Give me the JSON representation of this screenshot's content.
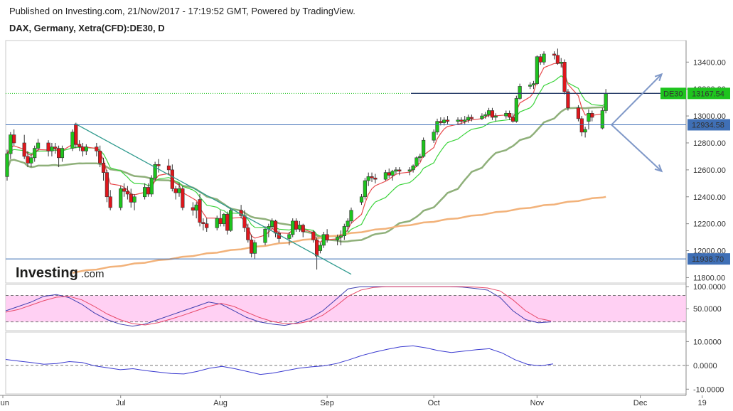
{
  "header": {
    "published": "Published on Investing.com, 21/Nov/2017 - 17:19:52 GMT, Powered by TradingView.",
    "instrument": "DAX, Germany, Xetra(CFD):DE30, D"
  },
  "logo": {
    "brand": "Investing",
    "suffix": ".com"
  },
  "colors": {
    "up": "#1ec41e",
    "down": "#e0161c",
    "ema_short": "#e8484b",
    "ema_mid": "#3bd33b",
    "sma_long": "#8fb07a",
    "sma_200": "#f2b27a",
    "trendline": "#2f9a8e",
    "support": "#3f6fb5",
    "arrow": "#7f98c8",
    "stoch_k": "#3f3fb0",
    "stoch_d": "#e84a6a",
    "stoch_band": "#ffc4f0",
    "indicator": "#3a3ad0"
  },
  "chart_data": [
    {
      "type": "candlestick",
      "title": "DAX, Germany, Xetra(CFD):DE30, D",
      "x_ticks": [
        "Jun",
        "Jul",
        "Aug",
        "Sep",
        "Oct",
        "Nov",
        "Dec",
        "19"
      ],
      "y_ticks": [
        11800,
        12000,
        12200,
        12400,
        12600,
        12800,
        13000,
        13200,
        13400
      ],
      "y_tick_labels": [
        "11800.00",
        "12000.00",
        "12200.00",
        "12400.00",
        "12600.00",
        "12800.00",
        "13000.00",
        "13200.00",
        "13400.00"
      ],
      "ylim": [
        11760,
        13560
      ],
      "start_date": "2017-06-01",
      "last_price": {
        "label": "DE30",
        "value": "13167.54",
        "y": 13167.54
      },
      "level_labels": [
        {
          "value": "12934.58",
          "y": 12934.58
        },
        {
          "value": "11938.70",
          "y": 11938.7
        }
      ],
      "support_lines": [
        12934.58,
        11938.7
      ],
      "trendline": {
        "from": {
          "date": "2017-06-20",
          "y": 12940
        },
        "to": {
          "date": "2017-09-08",
          "y": 11825
        }
      },
      "arrows": [
        {
          "from": {
            "date": "2017-11-21",
            "y": 12934.58
          },
          "to": {
            "date": "2017-12-01",
            "y": 13310
          }
        },
        {
          "from": {
            "date": "2017-11-21",
            "y": 12934.58
          },
          "to": {
            "date": "2017-12-01",
            "y": 12590
          }
        }
      ],
      "ohlc": [
        [
          "2017-05-31",
          12550,
          12750,
          12520,
          12720
        ],
        [
          "2017-06-01",
          12720,
          12880,
          12680,
          12860
        ],
        [
          "2017-06-02",
          12860,
          12900,
          12780,
          12800
        ],
        [
          "2017-06-05",
          12800,
          12860,
          12680,
          12700
        ],
        [
          "2017-06-06",
          12700,
          12740,
          12620,
          12650
        ],
        [
          "2017-06-07",
          12650,
          12720,
          12620,
          12690
        ],
        [
          "2017-06-08",
          12690,
          12780,
          12660,
          12760
        ],
        [
          "2017-06-09",
          12760,
          12830,
          12740,
          12800
        ],
        [
          "2017-06-12",
          12800,
          12820,
          12700,
          12740
        ],
        [
          "2017-06-13",
          12740,
          12800,
          12700,
          12770
        ],
        [
          "2017-06-14",
          12770,
          12800,
          12720,
          12760
        ],
        [
          "2017-06-15",
          12760,
          12780,
          12620,
          12690
        ],
        [
          "2017-06-16",
          12690,
          12780,
          12660,
          12760
        ],
        [
          "2017-06-19",
          12760,
          12900,
          12740,
          12880
        ],
        [
          "2017-06-20",
          12940,
          12950,
          12760,
          12790
        ],
        [
          "2017-06-21",
          12790,
          12820,
          12740,
          12770
        ],
        [
          "2017-06-22",
          12770,
          12800,
          12700,
          12740
        ],
        [
          "2017-06-23",
          12740,
          12790,
          12710,
          12770
        ],
        [
          "2017-06-26",
          12770,
          12800,
          12700,
          12740
        ],
        [
          "2017-06-27",
          12740,
          12780,
          12620,
          12650
        ],
        [
          "2017-06-28",
          12650,
          12690,
          12520,
          12580
        ],
        [
          "2017-06-29",
          12580,
          12600,
          12360,
          12400
        ],
        [
          "2017-06-30",
          12400,
          12450,
          12300,
          12320
        ],
        [
          "2017-07-03",
          12320,
          12480,
          12300,
          12460
        ],
        [
          "2017-07-04",
          12460,
          12500,
          12400,
          12440
        ],
        [
          "2017-07-05",
          12440,
          12480,
          12380,
          12420
        ],
        [
          "2017-07-06",
          12420,
          12460,
          12320,
          12360
        ],
        [
          "2017-07-07",
          12360,
          12420,
          12300,
          12400
        ],
        [
          "2017-07-10",
          12400,
          12500,
          12380,
          12470
        ],
        [
          "2017-07-11",
          12470,
          12500,
          12400,
          12420
        ],
        [
          "2017-07-12",
          12420,
          12560,
          12400,
          12540
        ],
        [
          "2017-07-13",
          12540,
          12660,
          12520,
          12640
        ],
        [
          "2017-07-14",
          12640,
          12680,
          12580,
          12630
        ],
        [
          "2017-07-17",
          12630,
          12680,
          12560,
          12600
        ],
        [
          "2017-07-18",
          12600,
          12640,
          12440,
          12460
        ],
        [
          "2017-07-19",
          12460,
          12480,
          12380,
          12430
        ],
        [
          "2017-07-20",
          12430,
          12500,
          12400,
          12460
        ],
        [
          "2017-07-21",
          12460,
          12480,
          12300,
          12320
        ],
        [
          "2017-07-24",
          12320,
          12360,
          12260,
          12300
        ],
        [
          "2017-07-25",
          12300,
          12360,
          12240,
          12340
        ],
        [
          "2017-07-26",
          12380,
          12420,
          12180,
          12210
        ],
        [
          "2017-07-27",
          12210,
          12240,
          12150,
          12200
        ],
        [
          "2017-07-28",
          12200,
          12240,
          12140,
          12170
        ],
        [
          "2017-07-31",
          12170,
          12260,
          12150,
          12240
        ],
        [
          "2017-08-01",
          12240,
          12300,
          12180,
          12200
        ],
        [
          "2017-08-02",
          12200,
          12280,
          12180,
          12270
        ],
        [
          "2017-08-03",
          12270,
          12290,
          12120,
          12150
        ],
        [
          "2017-08-04",
          12150,
          12320,
          12140,
          12300
        ],
        [
          "2017-08-07",
          12300,
          12340,
          12240,
          12260
        ],
        [
          "2017-08-08",
          12260,
          12300,
          12140,
          12170
        ],
        [
          "2017-08-09",
          12170,
          12200,
          12060,
          12080
        ],
        [
          "2017-08-10",
          12080,
          12120,
          11950,
          11980
        ],
        [
          "2017-08-11",
          11980,
          12080,
          11940,
          12060
        ],
        [
          "2017-08-14",
          12060,
          12180,
          12040,
          12160
        ],
        [
          "2017-08-15",
          12160,
          12200,
          12100,
          12180
        ],
        [
          "2017-08-16",
          12180,
          12240,
          12160,
          12220
        ],
        [
          "2017-08-17",
          12220,
          12230,
          12100,
          12130
        ],
        [
          "2017-08-18",
          12130,
          12150,
          12060,
          12090
        ],
        [
          "2017-08-21",
          12090,
          12140,
          12040,
          12120
        ],
        [
          "2017-08-22",
          12120,
          12240,
          12100,
          12220
        ],
        [
          "2017-08-23",
          12220,
          12240,
          12140,
          12160
        ],
        [
          "2017-08-24",
          12160,
          12220,
          12140,
          12190
        ],
        [
          "2017-08-25",
          12190,
          12200,
          12100,
          12140
        ],
        [
          "2017-08-28",
          12140,
          12150,
          12060,
          12080
        ],
        [
          "2017-08-29",
          12080,
          12100,
          11860,
          11960
        ],
        [
          "2017-08-30",
          12000,
          12060,
          11980,
          12040
        ],
        [
          "2017-08-31",
          12040,
          12140,
          12020,
          12120
        ],
        [
          "2017-09-01",
          12120,
          12160,
          12060,
          12080
        ],
        [
          "2017-09-04",
          12080,
          12120,
          12040,
          12100
        ],
        [
          "2017-09-05",
          12100,
          12150,
          12040,
          12110
        ],
        [
          "2017-09-06",
          12110,
          12200,
          12080,
          12180
        ],
        [
          "2017-09-07",
          12180,
          12240,
          12140,
          12220
        ],
        [
          "2017-09-08",
          12220,
          12320,
          12200,
          12300
        ],
        [
          "2017-09-11",
          12360,
          12420,
          12340,
          12400
        ],
        [
          "2017-09-12",
          12400,
          12540,
          12380,
          12520
        ],
        [
          "2017-09-13",
          12520,
          12580,
          12480,
          12550
        ],
        [
          "2017-09-14",
          12550,
          12580,
          12510,
          12540
        ],
        [
          "2017-09-15",
          12540,
          12570,
          12500,
          12530
        ],
        [
          "2017-09-18",
          12530,
          12600,
          12520,
          12580
        ],
        [
          "2017-09-19",
          12580,
          12610,
          12540,
          12560
        ],
        [
          "2017-09-20",
          12560,
          12600,
          12520,
          12590
        ],
        [
          "2017-09-21",
          12590,
          12620,
          12570,
          12600
        ],
        [
          "2017-09-22",
          12600,
          12620,
          12560,
          12590
        ],
        [
          "2017-09-25",
          12590,
          12620,
          12560,
          12600
        ],
        [
          "2017-09-26",
          12600,
          12640,
          12580,
          12630
        ],
        [
          "2017-09-27",
          12630,
          12700,
          12620,
          12690
        ],
        [
          "2017-09-28",
          12690,
          12720,
          12660,
          12700
        ],
        [
          "2017-09-29",
          12700,
          12840,
          12690,
          12820
        ],
        [
          "2017-10-02",
          12820,
          12900,
          12800,
          12880
        ],
        [
          "2017-10-03",
          12880,
          12980,
          12860,
          12960
        ],
        [
          "2017-10-04",
          12960,
          12990,
          12930,
          12950
        ],
        [
          "2017-10-05",
          12950,
          12990,
          12930,
          12970
        ],
        [
          "2017-10-06",
          12970,
          13000,
          12940,
          12960
        ],
        [
          "2017-10-09",
          12960,
          12990,
          12940,
          12970
        ],
        [
          "2017-10-10",
          12970,
          12990,
          12940,
          12960
        ],
        [
          "2017-10-11",
          12960,
          13000,
          12940,
          12970
        ],
        [
          "2017-10-12",
          12970,
          13010,
          12950,
          12990
        ],
        [
          "2017-10-13",
          12990,
          13010,
          12960,
          12980
        ],
        [
          "2017-10-16",
          12980,
          13020,
          12970,
          13000
        ],
        [
          "2017-10-17",
          13000,
          13030,
          12980,
          13010
        ],
        [
          "2017-10-18",
          13010,
          13060,
          12990,
          13040
        ],
        [
          "2017-10-19",
          13040,
          13060,
          12970,
          12990
        ],
        [
          "2017-10-20",
          12990,
          13020,
          12960,
          13000
        ],
        [
          "2017-10-23",
          13000,
          13040,
          12980,
          13020
        ],
        [
          "2017-10-24",
          13020,
          13040,
          12970,
          12990
        ],
        [
          "2017-10-25",
          12990,
          13020,
          12950,
          12960
        ],
        [
          "2017-10-26",
          12960,
          13150,
          12950,
          13130
        ],
        [
          "2017-10-27",
          13130,
          13240,
          13120,
          13220
        ],
        [
          "2017-10-30",
          13220,
          13250,
          13200,
          13230
        ],
        [
          "2017-10-31",
          13230,
          13260,
          13200,
          13240
        ],
        [
          "2017-11-01",
          13240,
          13450,
          13230,
          13440
        ],
        [
          "2017-11-02",
          13440,
          13460,
          13380,
          13400
        ],
        [
          "2017-11-03",
          13400,
          13480,
          13380,
          13460
        ],
        [
          "2017-11-06",
          13460,
          13480,
          13420,
          13450
        ],
        [
          "2017-11-07",
          13450,
          13500,
          13380,
          13390
        ],
        [
          "2017-11-08",
          13390,
          13430,
          13360,
          13400
        ],
        [
          "2017-11-09",
          13400,
          13420,
          13160,
          13180
        ],
        [
          "2017-11-10",
          13180,
          13200,
          13040,
          13060
        ],
        [
          "2017-11-13",
          13060,
          13080,
          12960,
          12980
        ],
        [
          "2017-11-14",
          12980,
          13000,
          12850,
          12880
        ],
        [
          "2017-11-15",
          12880,
          12920,
          12840,
          12900
        ],
        [
          "2017-11-16",
          12960,
          13050,
          12900,
          13020
        ],
        [
          "2017-11-17",
          13020,
          13040,
          12960,
          12990
        ],
        [
          "2017-11-20",
          12910,
          13060,
          12900,
          13040
        ],
        [
          "2017-11-21",
          13040,
          13200,
          13020,
          13167.54
        ]
      ]
    },
    {
      "type": "line",
      "title": "",
      "y_ticks": [
        50,
        100
      ],
      "y_tick_labels": [
        "50.0000",
        "100.0000"
      ],
      "ylim": [
        0,
        105
      ],
      "band": [
        20,
        80
      ],
      "series": [
        {
          "values": [
            45,
            55,
            65,
            78,
            82,
            75,
            60,
            40,
            25,
            15,
            10,
            15,
            25,
            35,
            45,
            55,
            65,
            60,
            45,
            30,
            20,
            15,
            12,
            18,
            28,
            45,
            70,
            95,
            100,
            100,
            100,
            100,
            100,
            100,
            100,
            100,
            99,
            96,
            92,
            75,
            45,
            25,
            18,
            20
          ]
        },
        {
          "values": [
            42,
            48,
            58,
            68,
            76,
            78,
            70,
            55,
            38,
            25,
            16,
            13,
            18,
            26,
            35,
            45,
            55,
            62,
            55,
            42,
            30,
            21,
            16,
            16,
            22,
            35,
            55,
            78,
            92,
            98,
            100,
            100,
            100,
            100,
            100,
            100,
            100,
            99,
            97,
            90,
            70,
            45,
            28,
            22
          ]
        }
      ]
    },
    {
      "type": "line",
      "title": "",
      "y_ticks": [
        -10,
        0,
        10
      ],
      "y_tick_labels": [
        "-10.0000",
        "0.0000",
        "10.0000"
      ],
      "ylim": [
        -12,
        14
      ],
      "series": [
        {
          "values": [
            2.5,
            1.8,
            1.2,
            0.5,
            0.8,
            1.6,
            1.2,
            -0.2,
            -1.0,
            -1.8,
            -1.4,
            -2.2,
            -2.8,
            -3.4,
            -3.6,
            -2.6,
            -1.2,
            -0.4,
            -1.4,
            -2.6,
            -3.8,
            -3.2,
            -2.2,
            -1.2,
            -0.6,
            -0.2,
            0.8,
            2.4,
            4.2,
            5.6,
            6.8,
            7.8,
            8.2,
            7.4,
            6.2,
            5.4,
            6.0,
            6.6,
            7.0,
            5.2,
            2.4,
            0.4,
            -0.2,
            0.6
          ]
        }
      ]
    }
  ]
}
